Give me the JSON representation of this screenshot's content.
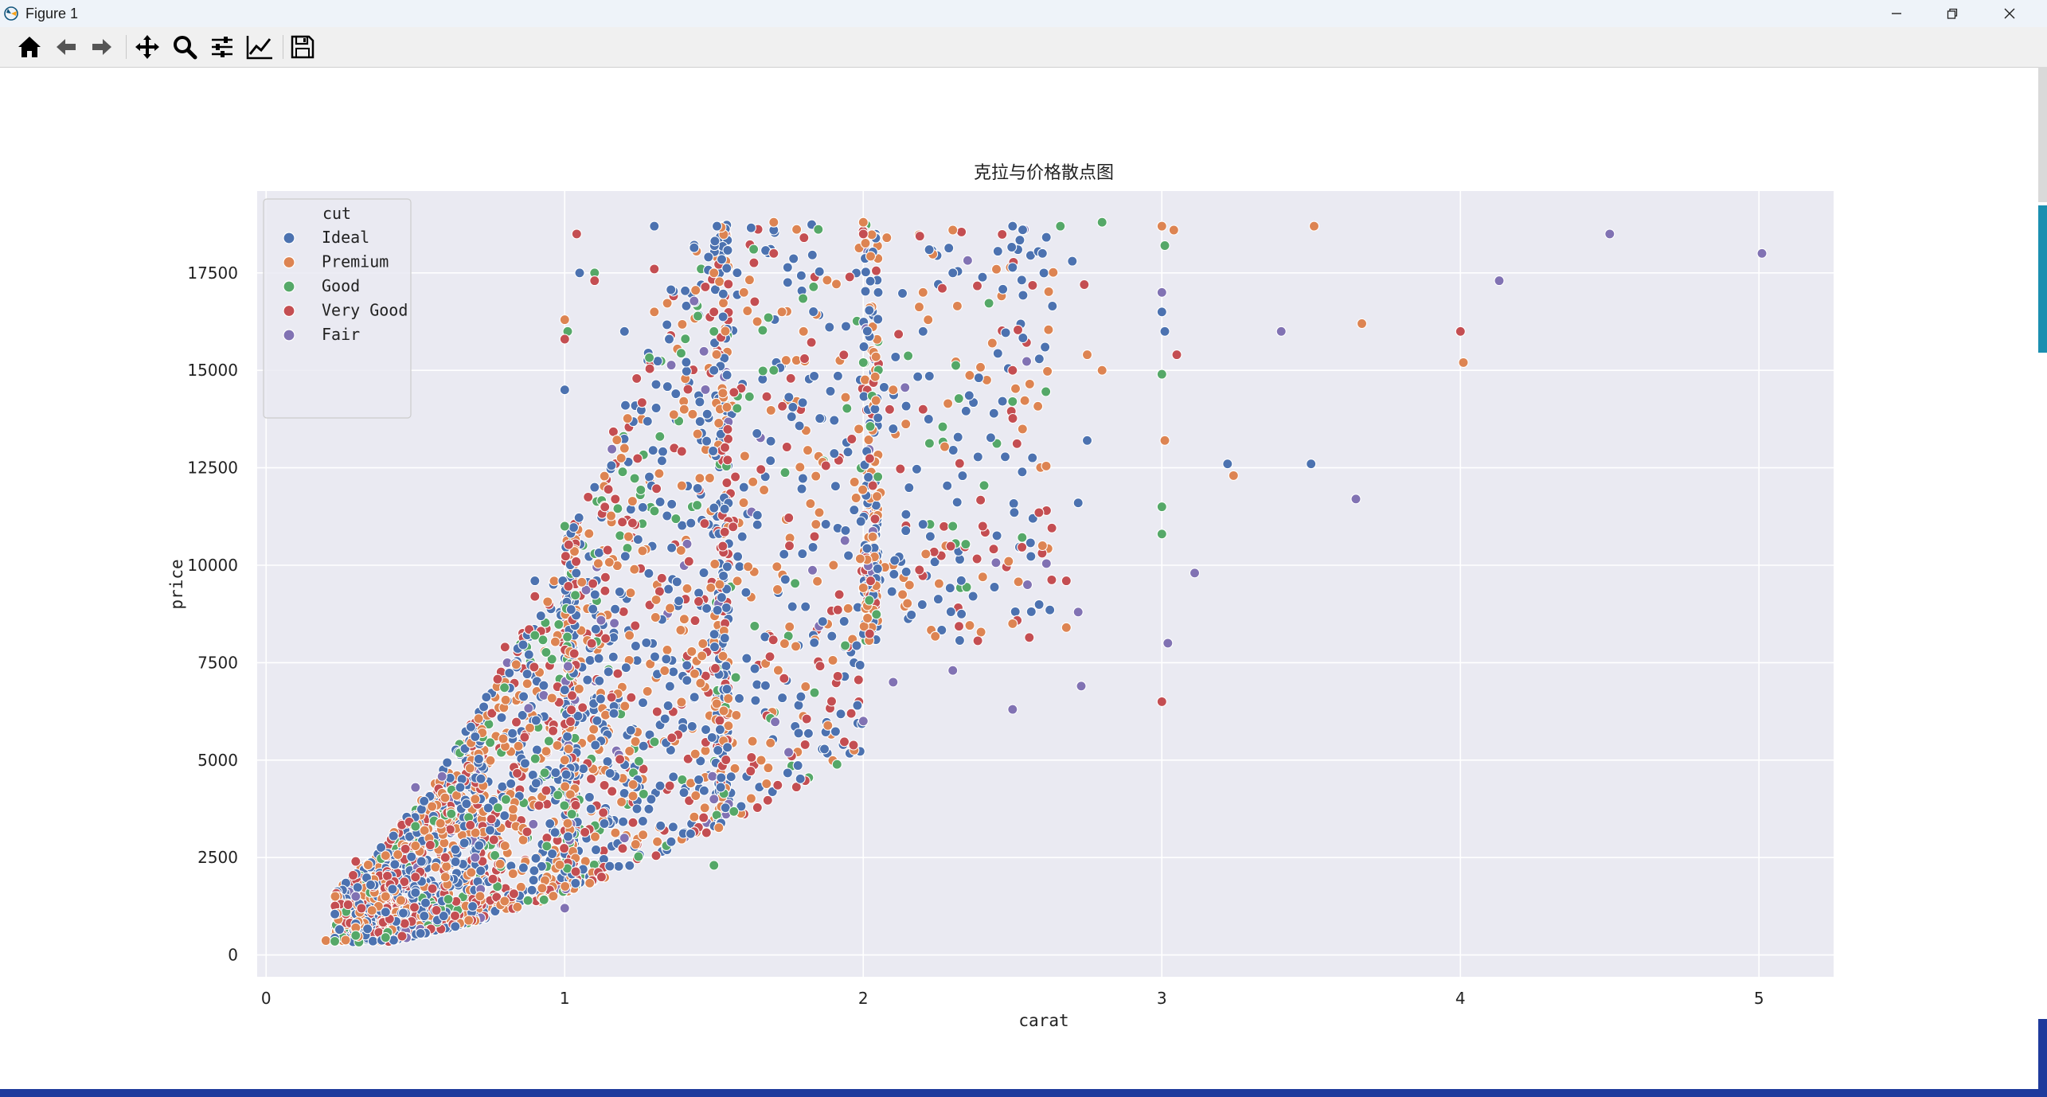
{
  "window": {
    "title": "Figure 1",
    "buttons": {
      "minimize": "minimize-icon",
      "restore": "restore-icon",
      "close": "close-icon"
    }
  },
  "toolbar": {
    "tools": [
      {
        "name": "home-icon"
      },
      {
        "name": "back-arrow-icon"
      },
      {
        "name": "forward-arrow-icon"
      },
      {
        "name": "pan-move-icon"
      },
      {
        "name": "zoom-magnifier-icon"
      },
      {
        "name": "configure-subplots-icon"
      },
      {
        "name": "edit-axis-icon"
      },
      {
        "name": "save-disk-icon"
      }
    ]
  },
  "colors": {
    "axes_bg": "#eaeaf2",
    "grid": "#ffffff",
    "Ideal": "#4c72b0",
    "Premium": "#dd8452",
    "Good": "#55a868",
    "Very Good": "#c44e52",
    "Fair": "#8172b3"
  },
  "chart_data": {
    "type": "scatter",
    "title": "克拉与价格散点图",
    "xlabel": "carat",
    "ylabel": "price",
    "xlim": [
      -0.03,
      5.25
    ],
    "ylim": [
      -560,
      19600
    ],
    "xticks": [
      0,
      1,
      2,
      3,
      4,
      5
    ],
    "yticks": [
      0,
      2500,
      5000,
      7500,
      10000,
      12500,
      15000,
      17500
    ],
    "grid": true,
    "legend": {
      "title": "cut",
      "placement": "top-left",
      "entries": [
        "Ideal",
        "Premium",
        "Good",
        "Very Good",
        "Fair"
      ]
    },
    "series": [
      {
        "name": "Ideal",
        "points": [
          [
            0.23,
            430
          ],
          [
            0.3,
            800
          ],
          [
            0.35,
            1800
          ],
          [
            0.4,
            1100
          ],
          [
            0.5,
            1600
          ],
          [
            0.52,
            2400
          ],
          [
            0.6,
            2500
          ],
          [
            0.65,
            4300
          ],
          [
            0.7,
            5600
          ],
          [
            0.75,
            3200
          ],
          [
            0.9,
            9600
          ],
          [
            0.92,
            8700
          ],
          [
            1.0,
            6800
          ],
          [
            1.0,
            14500
          ],
          [
            1.05,
            17500
          ],
          [
            1.1,
            12000
          ],
          [
            1.2,
            16000
          ],
          [
            1.3,
            18700
          ],
          [
            1.35,
            15800
          ],
          [
            1.5,
            15000
          ],
          [
            1.51,
            18700
          ],
          [
            1.6,
            12000
          ],
          [
            1.7,
            18600
          ],
          [
            1.8,
            16000
          ],
          [
            2.0,
            18800
          ],
          [
            2.05,
            17000
          ],
          [
            2.1,
            13500
          ],
          [
            2.2,
            16000
          ],
          [
            2.3,
            17500
          ],
          [
            2.5,
            18700
          ],
          [
            2.6,
            18000
          ],
          [
            2.7,
            17800
          ],
          [
            2.75,
            13200
          ],
          [
            2.72,
            11600
          ],
          [
            3.0,
            16500
          ],
          [
            3.01,
            16000
          ],
          [
            3.22,
            12600
          ],
          [
            3.5,
            12600
          ]
        ]
      },
      {
        "name": "Premium",
        "points": [
          [
            0.2,
            370
          ],
          [
            0.3,
            700
          ],
          [
            0.4,
            1500
          ],
          [
            0.5,
            2800
          ],
          [
            0.6,
            2000
          ],
          [
            0.7,
            4000
          ],
          [
            0.8,
            2800
          ],
          [
            1.0,
            5000
          ],
          [
            1.0,
            16300
          ],
          [
            1.2,
            13000
          ],
          [
            1.3,
            16500
          ],
          [
            1.4,
            14000
          ],
          [
            1.5,
            17500
          ],
          [
            1.6,
            17000
          ],
          [
            1.7,
            18800
          ],
          [
            1.8,
            16000
          ],
          [
            1.9,
            10000
          ],
          [
            2.0,
            18800
          ],
          [
            2.1,
            14500
          ],
          [
            2.2,
            17000
          ],
          [
            2.3,
            18600
          ],
          [
            2.4,
            9700
          ],
          [
            2.5,
            8500
          ],
          [
            2.6,
            10500
          ],
          [
            2.68,
            8400
          ],
          [
            2.75,
            15400
          ],
          [
            2.8,
            15000
          ],
          [
            3.0,
            18700
          ],
          [
            3.01,
            13200
          ],
          [
            3.04,
            18600
          ],
          [
            3.24,
            12300
          ],
          [
            3.51,
            18700
          ],
          [
            3.67,
            16200
          ],
          [
            4.01,
            15200
          ]
        ]
      },
      {
        "name": "Good",
        "points": [
          [
            0.23,
            350
          ],
          [
            0.3,
            500
          ],
          [
            0.4,
            450
          ],
          [
            0.5,
            3300
          ],
          [
            0.9,
            8200
          ],
          [
            1.0,
            11000
          ],
          [
            1.01,
            16000
          ],
          [
            1.1,
            17500
          ],
          [
            1.5,
            2300
          ],
          [
            1.5,
            16000
          ],
          [
            1.7,
            15000
          ],
          [
            2.0,
            15200
          ],
          [
            2.02,
            9100
          ],
          [
            2.3,
            11000
          ],
          [
            2.5,
            14200
          ],
          [
            2.66,
            18700
          ],
          [
            2.8,
            18800
          ],
          [
            3.0,
            10800
          ],
          [
            3.0,
            11500
          ],
          [
            3.0,
            14900
          ],
          [
            3.01,
            18200
          ]
        ]
      },
      {
        "name": "Very Good",
        "points": [
          [
            0.3,
            2400
          ],
          [
            0.5,
            2000
          ],
          [
            0.6,
            2500
          ],
          [
            0.8,
            7900
          ],
          [
            0.9,
            9200
          ],
          [
            1.0,
            15800
          ],
          [
            1.04,
            18500
          ],
          [
            1.1,
            17300
          ],
          [
            1.3,
            17600
          ],
          [
            1.5,
            16500
          ],
          [
            1.7,
            18000
          ],
          [
            2.0,
            18500
          ],
          [
            2.2,
            14000
          ],
          [
            2.4,
            11000
          ],
          [
            2.5,
            15000
          ],
          [
            2.68,
            9600
          ],
          [
            2.74,
            17200
          ],
          [
            3.0,
            6500
          ],
          [
            3.05,
            15400
          ],
          [
            4.0,
            16000
          ]
        ]
      },
      {
        "name": "Fair",
        "points": [
          [
            0.3,
            1500
          ],
          [
            0.5,
            4300
          ],
          [
            0.7,
            2500
          ],
          [
            1.0,
            1200
          ],
          [
            1.2,
            3000
          ],
          [
            1.5,
            4000
          ],
          [
            1.75,
            5200
          ],
          [
            2.0,
            6000
          ],
          [
            2.1,
            7000
          ],
          [
            2.3,
            7300
          ],
          [
            2.5,
            6300
          ],
          [
            2.55,
            9500
          ],
          [
            2.72,
            8800
          ],
          [
            2.73,
            6900
          ],
          [
            3.0,
            17000
          ],
          [
            3.02,
            8000
          ],
          [
            3.11,
            9800
          ],
          [
            3.4,
            16000
          ],
          [
            3.65,
            11700
          ],
          [
            4.13,
            17300
          ],
          [
            4.5,
            18500
          ],
          [
            5.01,
            18000
          ]
        ]
      }
    ]
  }
}
